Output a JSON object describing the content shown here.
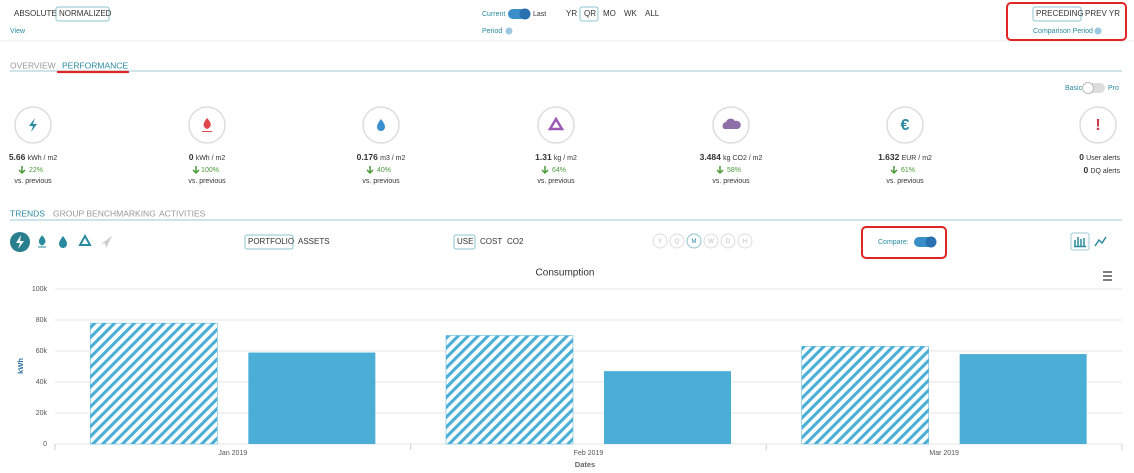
{
  "view": {
    "options": [
      "ABSOLUTE",
      "NORMALIZED"
    ],
    "label": "View"
  },
  "period": {
    "left": "Current",
    "right": "Last",
    "label": "Period",
    "options": [
      "YR",
      "QR",
      "MO",
      "WK",
      "ALL"
    ]
  },
  "comparison": {
    "options": [
      "PRECEDING",
      "PREV YR"
    ],
    "label": "Comparison Period"
  },
  "tabs": [
    "OVERVIEW",
    "PERFORMANCE"
  ],
  "mode": {
    "left": "Basic",
    "right": "Pro"
  },
  "kpis": [
    {
      "value": "5.66",
      "unit": "kWh / m2",
      "change": "22%",
      "note": "vs. previous"
    },
    {
      "value": "0",
      "unit": "kWh / m2",
      "change": "100%",
      "note": "vs. previous"
    },
    {
      "value": "0.176",
      "unit": "m3 / m2",
      "change": "40%",
      "note": "vs. previous"
    },
    {
      "value": "1.31",
      "unit": "kg / m2",
      "change": "64%",
      "note": "vs. previous"
    },
    {
      "value": "3.484",
      "unit": "kg CO2 / m2",
      "change": "58%",
      "note": "vs. previous"
    },
    {
      "value": "1.632",
      "unit": "EUR / m2",
      "change": "61%",
      "note": "vs. previous",
      "icon": "€"
    }
  ],
  "alerts": {
    "icon": "!",
    "items": [
      {
        "count": "0",
        "label": "User alerts"
      },
      {
        "count": "0",
        "label": "DQ alerts"
      }
    ]
  },
  "section_tabs": [
    "TRENDS",
    "GROUP BENCHMARKING",
    "ACTIVITIES"
  ],
  "scope": [
    "PORTFOLIO",
    "ASSETS"
  ],
  "metric": [
    "USE",
    "COST",
    "CO2"
  ],
  "granularity": [
    "Y",
    "Q",
    "M",
    "W",
    "D",
    "H"
  ],
  "compare_label": "Compare:",
  "chart_data": {
    "type": "bar",
    "title": "Consumption",
    "x_label": "Dates",
    "y_label": "kWh",
    "categories": [
      "Jan 2019",
      "Feb 2019",
      "Mar 2019"
    ],
    "series": [
      {
        "color": "#4aaed6",
        "pattern": "hatch",
        "values": [
          78000,
          70000,
          63000
        ]
      },
      {
        "color": "#4aaed6",
        "values": [
          59000,
          47000,
          58000
        ]
      }
    ],
    "ylim": [
      0,
      100000
    ],
    "yticks": [
      0,
      {
        "value": 20000,
        "label": "20k"
      },
      {
        "value": 40000,
        "label": "40k"
      },
      {
        "value": 60000,
        "label": "60k"
      },
      {
        "value": 80000,
        "label": "80k"
      },
      {
        "value": 100000,
        "label": "100k"
      }
    ],
    "grid": true
  }
}
